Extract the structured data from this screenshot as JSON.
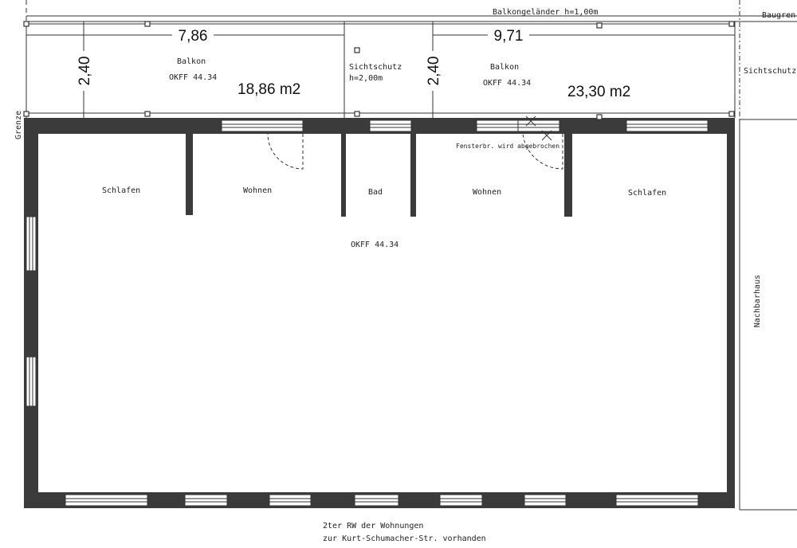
{
  "balcony_rail": "Balkongeländer h=1,00m",
  "building_line": "Baugren",
  "boundary": "Grenze",
  "balconies": [
    {
      "label": "Balkon",
      "level": "OKFF 44.34",
      "width": "7,86",
      "depth": "2,40",
      "area": "18,86 m2"
    },
    {
      "label": "Balkon",
      "level": "OKFF 44.34",
      "width": "9,71",
      "depth": "2,40",
      "area": "23,30 m2"
    }
  ],
  "privacy_screens": [
    {
      "lines": [
        "Sichtschutz",
        "h=2,00m"
      ]
    },
    {
      "lines": [
        "Sichtschutz"
      ]
    }
  ],
  "window_note": "Fensterbr. wird abgebrochen",
  "rooms": [
    {
      "label": "Schlafen"
    },
    {
      "label": "Wohnen"
    },
    {
      "label": "Bad"
    },
    {
      "label": "Wohnen"
    },
    {
      "label": "Schlafen"
    }
  ],
  "floor_level": "OKFF 44.34",
  "neighbor": "Nachbarhaus",
  "footnote": [
    "2ter RW der Wohnungen",
    "zur Kurt-Schumacher-Str. vorhanden"
  ]
}
